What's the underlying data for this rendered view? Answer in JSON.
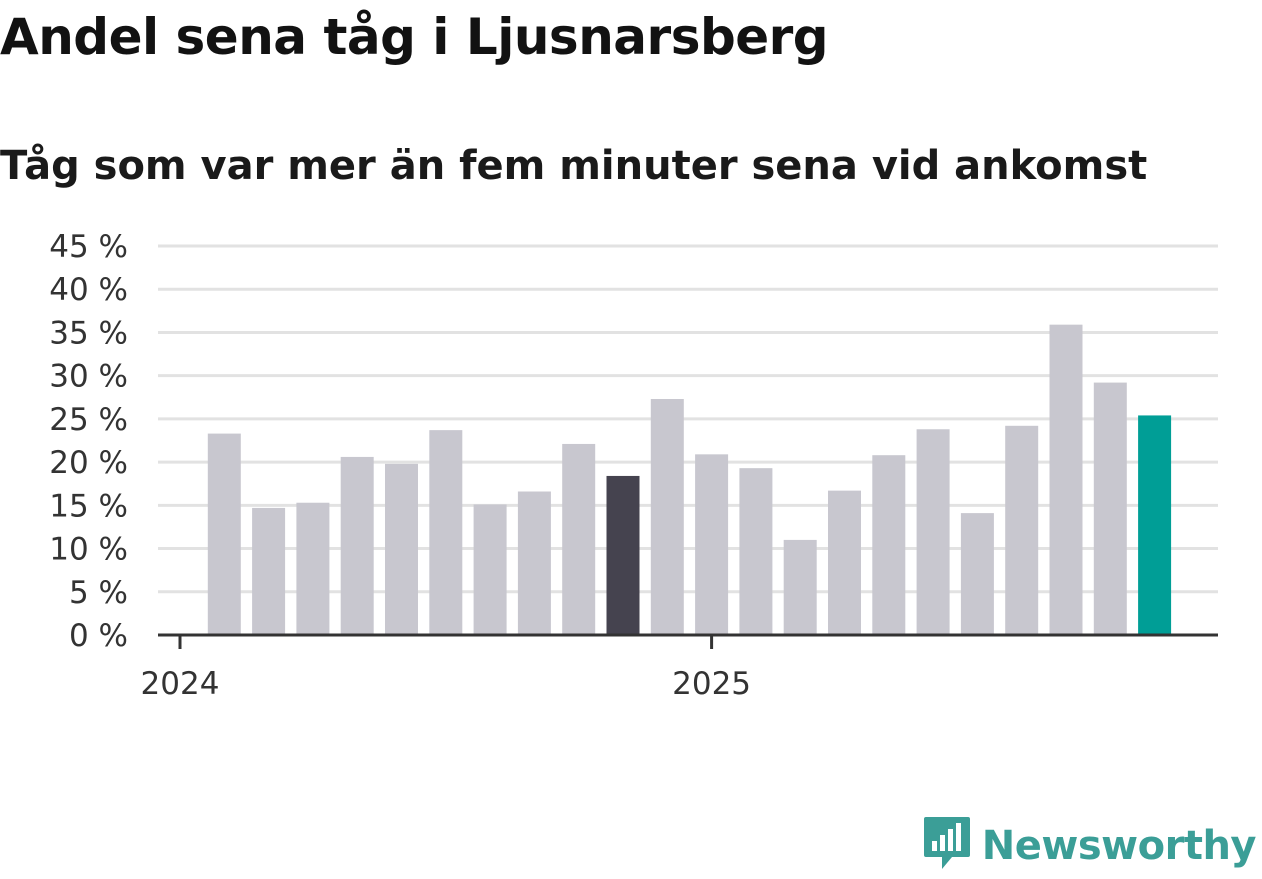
{
  "title": "Andel sena tåg i Ljusnarsberg",
  "subtitle": "Tåg som var mer än fem minuter sena vid ankomst",
  "brand": {
    "name": "Newsworthy",
    "icon": "newsworthy-logo-icon"
  },
  "colors": {
    "bar_default": "#c8c7cf",
    "bar_highlight_dark": "#45434f",
    "bar_highlight_accent": "#009e96",
    "gridline": "#e2e2e2",
    "axis": "#333333",
    "brand": "#3b9e97"
  },
  "chart_data": {
    "type": "bar",
    "title": "Andel sena tåg i Ljusnarsberg",
    "subtitle": "Tåg som var mer än fem minuter sena vid ankomst",
    "categories": [
      "2024-01",
      "2024-02",
      "2024-03",
      "2024-04",
      "2024-05",
      "2024-06",
      "2024-07",
      "2024-08",
      "2024-09",
      "2024-10",
      "2024-11",
      "2024-12",
      "2025-01",
      "2025-02",
      "2025-03",
      "2025-04",
      "2025-05",
      "2025-06",
      "2025-07",
      "2025-08",
      "2025-09",
      "2025-10",
      "2025-11",
      "2025-12"
    ],
    "values": [
      null,
      23.3,
      14.7,
      15.3,
      20.6,
      19.8,
      23.7,
      15.1,
      16.6,
      22.1,
      18.4,
      27.3,
      20.9,
      19.3,
      11.0,
      16.7,
      20.8,
      23.8,
      14.1,
      24.2,
      35.9,
      29.2,
      25.4,
      null
    ],
    "highlight": {
      "2024-11": "dark",
      "2025-11": "accent"
    },
    "ylim": [
      0,
      45
    ],
    "yticks": [
      0,
      5,
      10,
      15,
      20,
      25,
      30,
      35,
      40,
      45
    ],
    "ytick_labels": [
      "0 %",
      "5 %",
      "10 %",
      "15 %",
      "20 %",
      "25 %",
      "30 %",
      "35 %",
      "40 %",
      "45 %"
    ],
    "xticks": [
      "2024-01",
      "2025-01"
    ],
    "xtick_labels": [
      "2024",
      "2025"
    ],
    "grid": true,
    "legend": "none"
  }
}
